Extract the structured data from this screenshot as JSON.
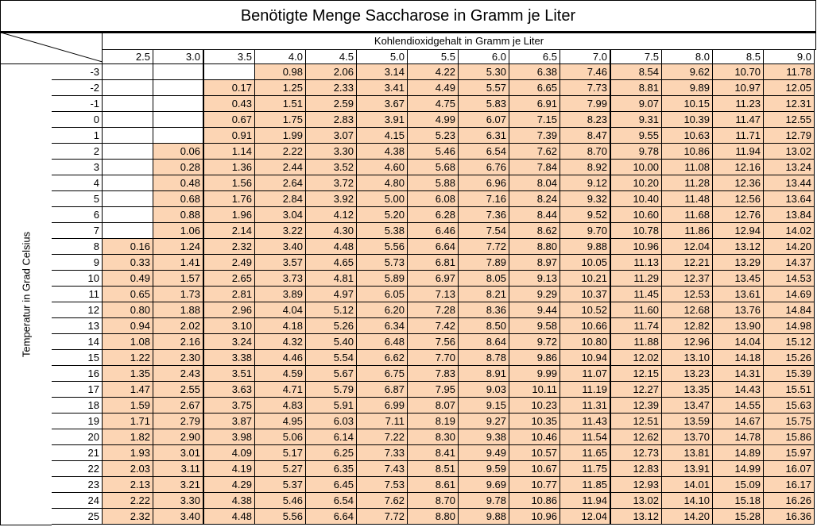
{
  "title": "Benötigte Menge Saccharose in Gramm je Liter",
  "column_axis_label": "Kohlendioxidgehalt in Gramm je Liter",
  "row_axis_label": "Temperatur in Grad Celsius",
  "fill_color": "#fcd5b4",
  "columns": [
    "2.5",
    "3.0",
    "3.5",
    "4.0",
    "4.5",
    "5.0",
    "5.5",
    "6.0",
    "6.5",
    "7.0",
    "7.5",
    "8.0",
    "8.5",
    "9.0"
  ],
  "rows": [
    {
      "t": "-3",
      "v": [
        null,
        null,
        null,
        "0.98",
        "2.06",
        "3.14",
        "4.22",
        "5.30",
        "6.38",
        "7.46",
        "8.54",
        "9.62",
        "10.70",
        "11.78"
      ]
    },
    {
      "t": "-2",
      "v": [
        null,
        null,
        "0.17",
        "1.25",
        "2.33",
        "3.41",
        "4.49",
        "5.57",
        "6.65",
        "7.73",
        "8.81",
        "9.89",
        "10.97",
        "12.05"
      ]
    },
    {
      "t": "-1",
      "v": [
        null,
        null,
        "0.43",
        "1.51",
        "2.59",
        "3.67",
        "4.75",
        "5.83",
        "6.91",
        "7.99",
        "9.07",
        "10.15",
        "11.23",
        "12.31"
      ]
    },
    {
      "t": "0",
      "v": [
        null,
        null,
        "0.67",
        "1.75",
        "2.83",
        "3.91",
        "4.99",
        "6.07",
        "7.15",
        "8.23",
        "9.31",
        "10.39",
        "11.47",
        "12.55"
      ]
    },
    {
      "t": "1",
      "v": [
        null,
        null,
        "0.91",
        "1.99",
        "3.07",
        "4.15",
        "5.23",
        "6.31",
        "7.39",
        "8.47",
        "9.55",
        "10.63",
        "11.71",
        "12.79"
      ]
    },
    {
      "t": "2",
      "v": [
        null,
        "0.06",
        "1.14",
        "2.22",
        "3.30",
        "4.38",
        "5.46",
        "6.54",
        "7.62",
        "8.70",
        "9.78",
        "10.86",
        "11.94",
        "13.02"
      ]
    },
    {
      "t": "3",
      "v": [
        null,
        "0.28",
        "1.36",
        "2.44",
        "3.52",
        "4.60",
        "5.68",
        "6.76",
        "7.84",
        "8.92",
        "10.00",
        "11.08",
        "12.16",
        "13.24"
      ]
    },
    {
      "t": "4",
      "v": [
        null,
        "0.48",
        "1.56",
        "2.64",
        "3.72",
        "4.80",
        "5.88",
        "6.96",
        "8.04",
        "9.12",
        "10.20",
        "11.28",
        "12.36",
        "13.44"
      ]
    },
    {
      "t": "5",
      "v": [
        null,
        "0.68",
        "1.76",
        "2.84",
        "3.92",
        "5.00",
        "6.08",
        "7.16",
        "8.24",
        "9.32",
        "10.40",
        "11.48",
        "12.56",
        "13.64"
      ]
    },
    {
      "t": "6",
      "v": [
        null,
        "0.88",
        "1.96",
        "3.04",
        "4.12",
        "5.20",
        "6.28",
        "7.36",
        "8.44",
        "9.52",
        "10.60",
        "11.68",
        "12.76",
        "13.84"
      ]
    },
    {
      "t": "7",
      "v": [
        null,
        "1.06",
        "2.14",
        "3.22",
        "4.30",
        "5.38",
        "6.46",
        "7.54",
        "8.62",
        "9.70",
        "10.78",
        "11.86",
        "12.94",
        "14.02"
      ]
    },
    {
      "t": "8",
      "v": [
        "0.16",
        "1.24",
        "2.32",
        "3.40",
        "4.48",
        "5.56",
        "6.64",
        "7.72",
        "8.80",
        "9.88",
        "10.96",
        "12.04",
        "13.12",
        "14.20"
      ]
    },
    {
      "t": "9",
      "v": [
        "0.33",
        "1.41",
        "2.49",
        "3.57",
        "4.65",
        "5.73",
        "6.81",
        "7.89",
        "8.97",
        "10.05",
        "11.13",
        "12.21",
        "13.29",
        "14.37"
      ]
    },
    {
      "t": "10",
      "v": [
        "0.49",
        "1.57",
        "2.65",
        "3.73",
        "4.81",
        "5.89",
        "6.97",
        "8.05",
        "9.13",
        "10.21",
        "11.29",
        "12.37",
        "13.45",
        "14.53"
      ]
    },
    {
      "t": "11",
      "v": [
        "0.65",
        "1.73",
        "2.81",
        "3.89",
        "4.97",
        "6.05",
        "7.13",
        "8.21",
        "9.29",
        "10.37",
        "11.45",
        "12.53",
        "13.61",
        "14.69"
      ]
    },
    {
      "t": "12",
      "v": [
        "0.80",
        "1.88",
        "2.96",
        "4.04",
        "5.12",
        "6.20",
        "7.28",
        "8.36",
        "9.44",
        "10.52",
        "11.60",
        "12.68",
        "13.76",
        "14.84"
      ]
    },
    {
      "t": "13",
      "v": [
        "0.94",
        "2.02",
        "3.10",
        "4.18",
        "5.26",
        "6.34",
        "7.42",
        "8.50",
        "9.58",
        "10.66",
        "11.74",
        "12.82",
        "13.90",
        "14.98"
      ]
    },
    {
      "t": "14",
      "v": [
        "1.08",
        "2.16",
        "3.24",
        "4.32",
        "5.40",
        "6.48",
        "7.56",
        "8.64",
        "9.72",
        "10.80",
        "11.88",
        "12.96",
        "14.04",
        "15.12"
      ]
    },
    {
      "t": "15",
      "v": [
        "1.22",
        "2.30",
        "3.38",
        "4.46",
        "5.54",
        "6.62",
        "7.70",
        "8.78",
        "9.86",
        "10.94",
        "12.02",
        "13.10",
        "14.18",
        "15.26"
      ]
    },
    {
      "t": "16",
      "v": [
        "1.35",
        "2.43",
        "3.51",
        "4.59",
        "5.67",
        "6.75",
        "7.83",
        "8.91",
        "9.99",
        "11.07",
        "12.15",
        "13.23",
        "14.31",
        "15.39"
      ]
    },
    {
      "t": "17",
      "v": [
        "1.47",
        "2.55",
        "3.63",
        "4.71",
        "5.79",
        "6.87",
        "7.95",
        "9.03",
        "10.11",
        "11.19",
        "12.27",
        "13.35",
        "14.43",
        "15.51"
      ]
    },
    {
      "t": "18",
      "v": [
        "1.59",
        "2.67",
        "3.75",
        "4.83",
        "5.91",
        "6.99",
        "8.07",
        "9.15",
        "10.23",
        "11.31",
        "12.39",
        "13.47",
        "14.55",
        "15.63"
      ]
    },
    {
      "t": "19",
      "v": [
        "1.71",
        "2.79",
        "3.87",
        "4.95",
        "6.03",
        "7.11",
        "8.19",
        "9.27",
        "10.35",
        "11.43",
        "12.51",
        "13.59",
        "14.67",
        "15.75"
      ]
    },
    {
      "t": "20",
      "v": [
        "1.82",
        "2.90",
        "3.98",
        "5.06",
        "6.14",
        "7.22",
        "8.30",
        "9.38",
        "10.46",
        "11.54",
        "12.62",
        "13.70",
        "14.78",
        "15.86"
      ]
    },
    {
      "t": "21",
      "v": [
        "1.93",
        "3.01",
        "4.09",
        "5.17",
        "6.25",
        "7.33",
        "8.41",
        "9.49",
        "10.57",
        "11.65",
        "12.73",
        "13.81",
        "14.89",
        "15.97"
      ]
    },
    {
      "t": "22",
      "v": [
        "2.03",
        "3.11",
        "4.19",
        "5.27",
        "6.35",
        "7.43",
        "8.51",
        "9.59",
        "10.67",
        "11.75",
        "12.83",
        "13.91",
        "14.99",
        "16.07"
      ]
    },
    {
      "t": "23",
      "v": [
        "2.13",
        "3.21",
        "4.29",
        "5.37",
        "6.45",
        "7.53",
        "8.61",
        "9.69",
        "10.77",
        "11.85",
        "12.93",
        "14.01",
        "15.09",
        "16.17"
      ]
    },
    {
      "t": "24",
      "v": [
        "2.22",
        "3.30",
        "4.38",
        "5.46",
        "6.54",
        "7.62",
        "8.70",
        "9.78",
        "10.86",
        "11.94",
        "13.02",
        "14.10",
        "15.18",
        "16.26"
      ]
    },
    {
      "t": "25",
      "v": [
        "2.32",
        "3.40",
        "4.48",
        "5.56",
        "6.64",
        "7.72",
        "8.80",
        "9.88",
        "10.96",
        "12.04",
        "13.12",
        "14.20",
        "15.28",
        "16.36"
      ]
    }
  ]
}
